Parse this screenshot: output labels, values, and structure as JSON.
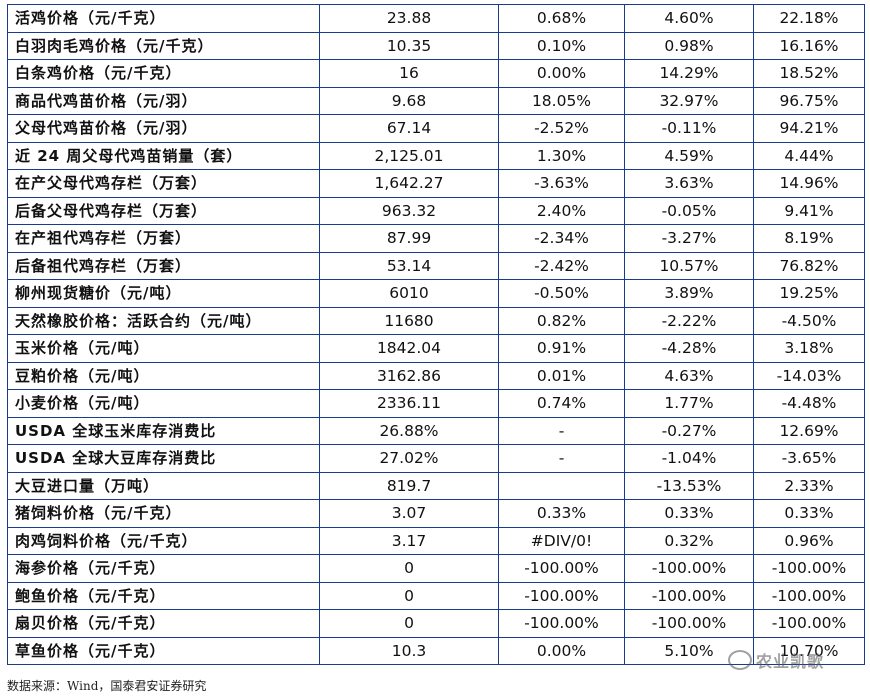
{
  "rows": [
    {
      "name": "活鸡价格（元/千克）",
      "v1": "23.88",
      "v2": "0.68%",
      "v3": "4.60%",
      "v4": "22.18%"
    },
    {
      "name": "白羽肉毛鸡价格（元/千克）",
      "v1": "10.35",
      "v2": "0.10%",
      "v3": "0.98%",
      "v4": "16.16%"
    },
    {
      "name": "白条鸡价格（元/千克）",
      "v1": "16",
      "v2": "0.00%",
      "v3": "14.29%",
      "v4": "18.52%"
    },
    {
      "name": "商品代鸡苗价格（元/羽）",
      "v1": "9.68",
      "v2": "18.05%",
      "v3": "32.97%",
      "v4": "96.75%"
    },
    {
      "name": "父母代鸡苗价格（元/羽）",
      "v1": "67.14",
      "v2": "-2.52%",
      "v3": "-0.11%",
      "v4": "94.21%"
    },
    {
      "name": "近 24 周父母代鸡苗销量（套）",
      "v1": "2,125.01",
      "v2": "1.30%",
      "v3": "4.59%",
      "v4": "4.44%"
    },
    {
      "name": "在产父母代鸡存栏（万套）",
      "v1": "1,642.27",
      "v2": "-3.63%",
      "v3": "3.63%",
      "v4": "14.96%"
    },
    {
      "name": "后备父母代鸡存栏（万套）",
      "v1": "963.32",
      "v2": "2.40%",
      "v3": "-0.05%",
      "v4": "9.41%"
    },
    {
      "name": "在产祖代鸡存栏（万套）",
      "v1": "87.99",
      "v2": "-2.34%",
      "v3": "-3.27%",
      "v4": "8.19%"
    },
    {
      "name": "后备祖代鸡存栏（万套）",
      "v1": "53.14",
      "v2": "-2.42%",
      "v3": "10.57%",
      "v4": "76.82%"
    },
    {
      "name": "柳州现货糖价（元/吨）",
      "v1": "6010",
      "v2": "-0.50%",
      "v3": "3.89%",
      "v4": "19.25%"
    },
    {
      "name": "天然橡胶价格：活跃合约（元/吨）",
      "v1": "11680",
      "v2": "0.82%",
      "v3": "-2.22%",
      "v4": "-4.50%"
    },
    {
      "name": "玉米价格（元/吨）",
      "v1": "1842.04",
      "v2": "0.91%",
      "v3": "-4.28%",
      "v4": "3.18%"
    },
    {
      "name": "豆粕价格（元/吨）",
      "v1": "3162.86",
      "v2": "0.01%",
      "v3": "4.63%",
      "v4": "-14.03%"
    },
    {
      "name": "小麦价格（元/吨）",
      "v1": "2336.11",
      "v2": "0.74%",
      "v3": "1.77%",
      "v4": "-4.48%"
    },
    {
      "name": "USDA 全球玉米库存消费比",
      "v1": "26.88%",
      "v2": "-",
      "v3": "-0.27%",
      "v4": "12.69%"
    },
    {
      "name": "USDA 全球大豆库存消费比",
      "v1": "27.02%",
      "v2": "-",
      "v3": "-1.04%",
      "v4": "-3.65%"
    },
    {
      "name": "大豆进口量（万吨）",
      "v1": "819.7",
      "v2": "",
      "v3": "-13.53%",
      "v4": "2.33%"
    },
    {
      "name": "猪饲料价格（元/千克）",
      "v1": "3.07",
      "v2": "0.33%",
      "v3": "0.33%",
      "v4": "0.33%"
    },
    {
      "name": "肉鸡饲料价格（元/千克）",
      "v1": "3.17",
      "v2": "#DIV/0!",
      "v3": "0.32%",
      "v4": "0.96%"
    },
    {
      "name": "海参价格（元/千克）",
      "v1": "0",
      "v2": "-100.00%",
      "v3": "-100.00%",
      "v4": "-100.00%"
    },
    {
      "name": "鲍鱼价格（元/千克）",
      "v1": "0",
      "v2": "-100.00%",
      "v3": "-100.00%",
      "v4": "-100.00%"
    },
    {
      "name": "扇贝价格（元/千克）",
      "v1": "0",
      "v2": "-100.00%",
      "v3": "-100.00%",
      "v4": "-100.00%"
    },
    {
      "name": "草鱼价格（元/千克）",
      "v1": "10.3",
      "v2": "0.00%",
      "v3": "5.10%",
      "v4": "10.70%"
    }
  ],
  "source": "数据来源：Wind，国泰君安证券研究",
  "watermark": "农业凯歌",
  "border_color": "#1a3a8c"
}
